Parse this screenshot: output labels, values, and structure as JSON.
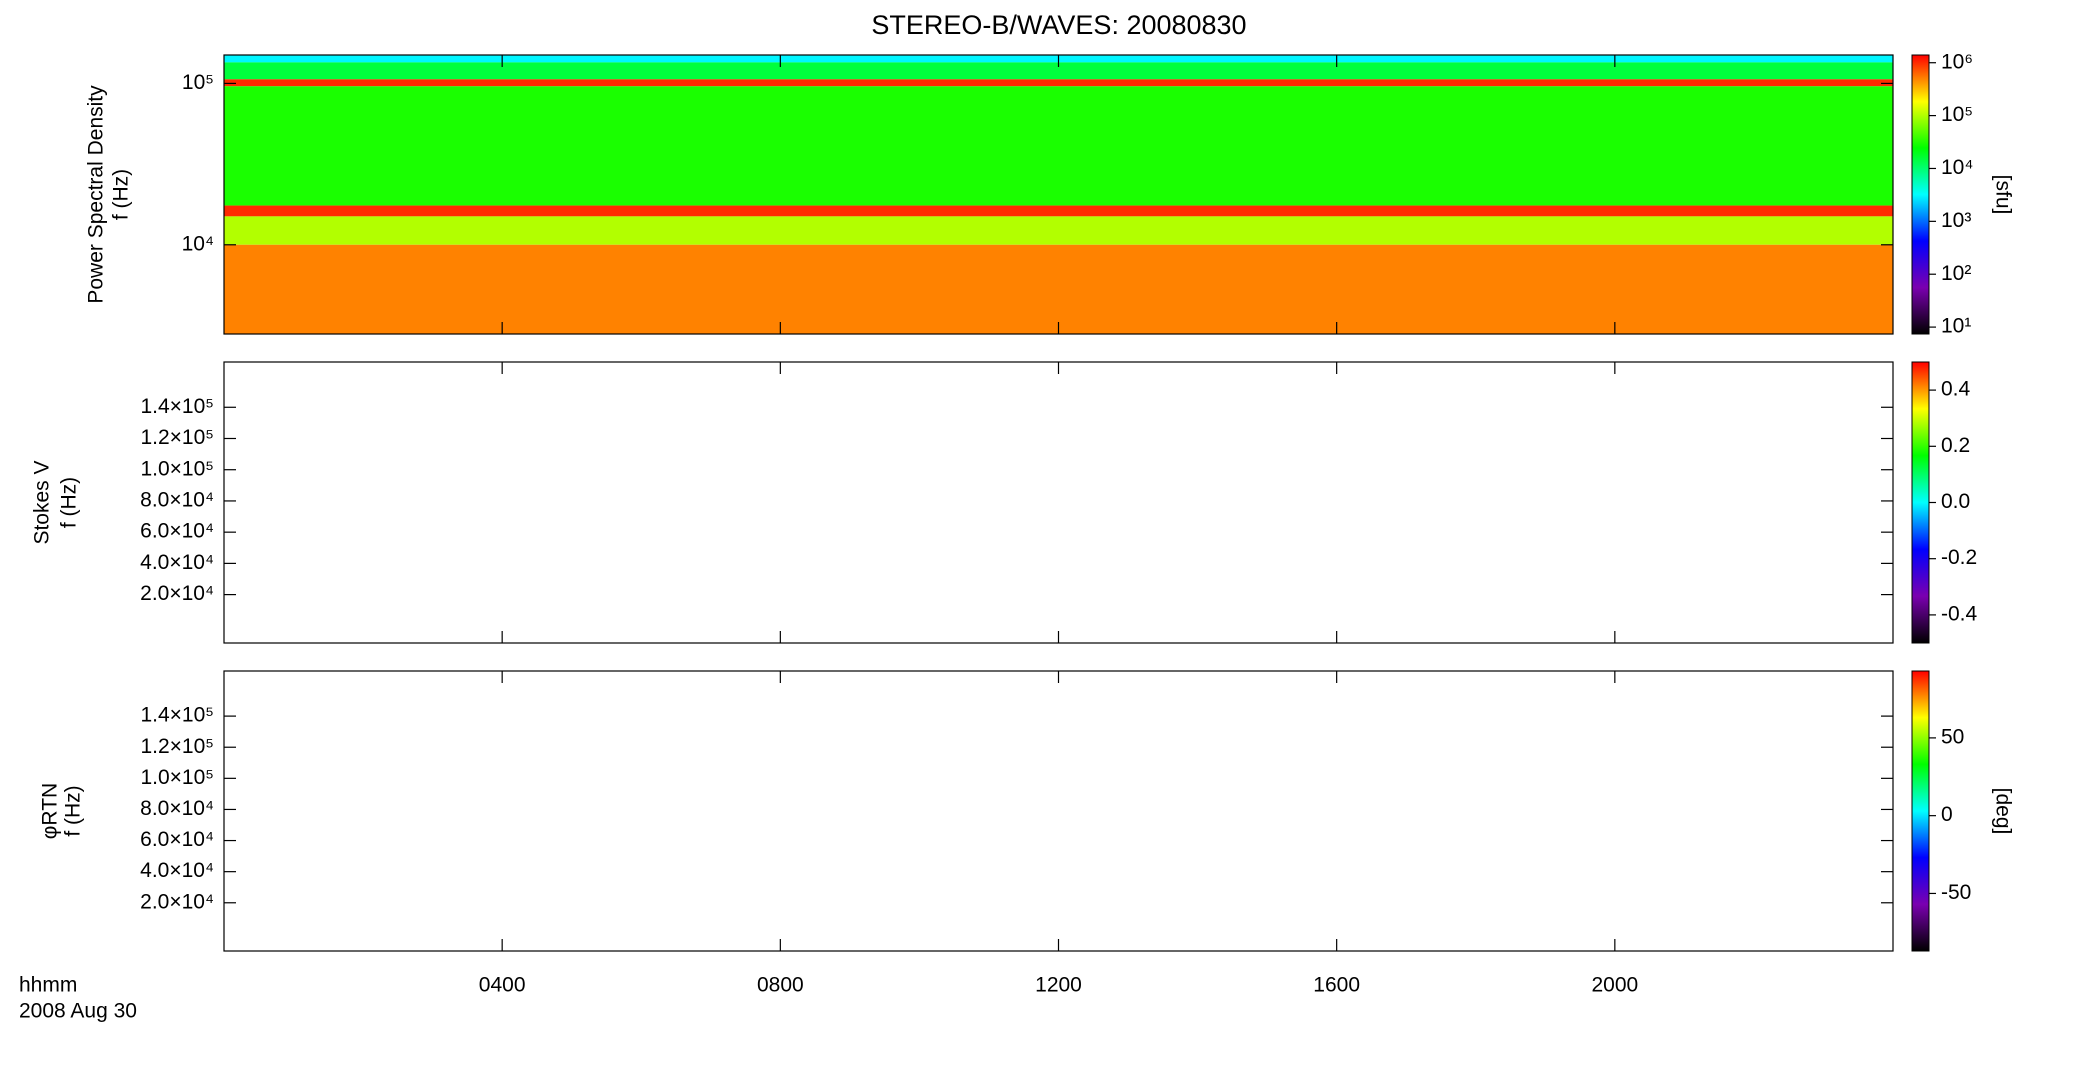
{
  "title": "STEREO-B/WAVES: 20080830",
  "time_axis": {
    "label": "hhmm",
    "date": "2008 Aug 30",
    "xlim": [
      0,
      1440
    ],
    "xticks": [
      {
        "value": 240,
        "label": "0400"
      },
      {
        "value": 480,
        "label": "0800"
      },
      {
        "value": 720,
        "label": "1200"
      },
      {
        "value": 960,
        "label": "1600"
      },
      {
        "value": 1200,
        "label": "2000"
      }
    ]
  },
  "colormap": [
    "#000000",
    "#7a00b0",
    "#0000ff",
    "#00ffff",
    "#00ff00",
    "#ffff00",
    "#ff0000"
  ],
  "chart_data": [
    {
      "type": "spectrogram",
      "ylabel": "Power Spectral Density",
      "ylabel2": "f (Hz)",
      "ylog": true,
      "ylim": [
        2800,
        150000
      ],
      "yticks": [
        {
          "value": 10000,
          "label": "10⁴"
        },
        {
          "value": 100000,
          "label": "10⁵"
        }
      ],
      "zlog": true,
      "zlim": [
        7.4,
        1400000
      ],
      "zlabel": "[sfu]",
      "zticks": [
        {
          "value": 10,
          "label": "10¹"
        },
        {
          "value": 100,
          "label": "10²"
        },
        {
          "value": 1000,
          "label": "10³"
        },
        {
          "value": 10000,
          "label": "10⁴"
        },
        {
          "value": 100000,
          "label": "10⁵"
        },
        {
          "value": 1000000,
          "label": "10⁶"
        }
      ],
      "rows": [
        {
          "f_range": [
            135000,
            150000
          ],
          "value": 3000
        },
        {
          "f_range": [
            106000,
            135000
          ],
          "value": 15000
        },
        {
          "f_range": [
            96000,
            106000
          ],
          "value": 1000000
        },
        {
          "f_range": [
            17500,
            96000
          ],
          "value": 30000
        },
        {
          "f_range": [
            15000,
            17500
          ],
          "value": 1000000
        },
        {
          "f_range": [
            10000,
            15000
          ],
          "value": 100000
        },
        {
          "f_range": [
            2800,
            10000
          ],
          "value": 500000
        }
      ]
    },
    {
      "type": "spectrogram",
      "ylabel": "Stokes V",
      "ylabel2": "f (Hz)",
      "ylog": false,
      "ylim": [
        -11000,
        169000
      ],
      "yticks": [
        {
          "value": 20000,
          "label": "2.0×10⁴"
        },
        {
          "value": 40000,
          "label": "4.0×10⁴"
        },
        {
          "value": 60000,
          "label": "6.0×10⁴"
        },
        {
          "value": 80000,
          "label": "8.0×10⁴"
        },
        {
          "value": 100000,
          "label": "1.0×10⁵"
        },
        {
          "value": 120000,
          "label": "1.2×10⁵"
        },
        {
          "value": 140000,
          "label": "1.4×10⁵"
        }
      ],
      "zlog": false,
      "zlim": [
        -0.5,
        0.5
      ],
      "zticks": [
        -0.4,
        -0.2,
        {
          "value": 0,
          "label": "0.0"
        },
        0.2,
        0.4
      ],
      "rows": []
    },
    {
      "type": "spectrogram",
      "ylabel": "φRTN",
      "ylabel2": "f (Hz)",
      "ylog": false,
      "ylim": [
        -11000,
        169000
      ],
      "yticks": [
        {
          "value": 20000,
          "label": "2.0×10⁴"
        },
        {
          "value": 40000,
          "label": "4.0×10⁴"
        },
        {
          "value": 60000,
          "label": "6.0×10⁴"
        },
        {
          "value": 80000,
          "label": "8.0×10⁴"
        },
        {
          "value": 100000,
          "label": "1.0×10⁵"
        },
        {
          "value": 120000,
          "label": "1.2×10⁵"
        },
        {
          "value": 140000,
          "label": "1.4×10⁵"
        }
      ],
      "zlog": false,
      "zlim": [
        -87,
        93
      ],
      "zlabel": "[deg]",
      "zticks": [
        -50,
        0,
        50
      ],
      "rows": []
    }
  ]
}
